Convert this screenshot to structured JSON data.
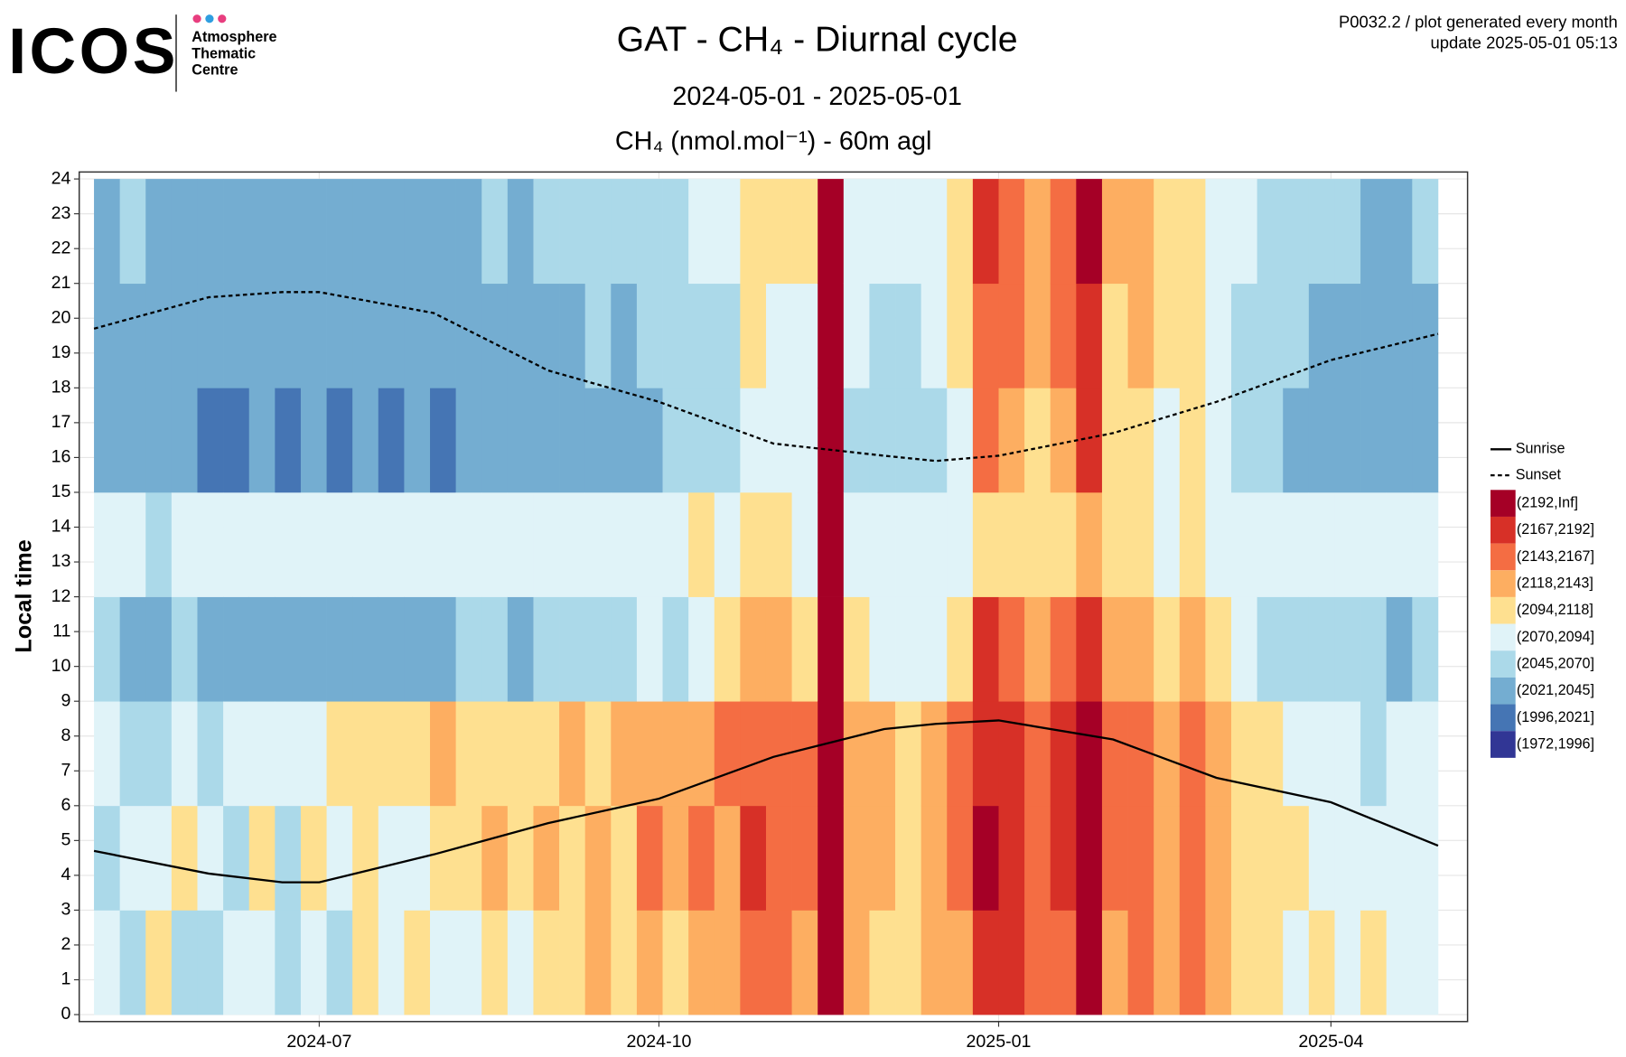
{
  "logo": {
    "name": "ICOS",
    "lines": [
      "Atmosphere",
      "Thematic",
      "Centre"
    ]
  },
  "info": [
    "P0032.2 / plot generated every month",
    "update  2025-05-01 05:13"
  ],
  "chart_data": {
    "type": "heatmap",
    "title": "GAT - CH₄ - Diurnal cycle",
    "subtitle": "2024-05-01 - 2025-05-01",
    "axis_title": "CH₄ (nmol.mol⁻¹) - 60m agl",
    "y_label": "Local time",
    "xlim": [
      "2024-04-27",
      "2025-05-08"
    ],
    "xticks": [
      {
        "value": "2024-07-01",
        "label": "2024-07"
      },
      {
        "value": "2024-10-01",
        "label": "2024-10"
      },
      {
        "value": "2025-01-01",
        "label": "2025-01"
      },
      {
        "value": "2025-04-01",
        "label": "2025-04"
      }
    ],
    "ylim": [
      -0.2,
      24.2
    ],
    "yticks": [
      0,
      1,
      2,
      3,
      4,
      5,
      6,
      7,
      8,
      9,
      10,
      11,
      12,
      13,
      14,
      15,
      16,
      17,
      18,
      19,
      20,
      21,
      22,
      23,
      24
    ],
    "grid": true,
    "x": [
      "2024-05-01",
      "2024-05-08",
      "2024-05-15",
      "2024-05-22",
      "2024-05-29",
      "2024-06-05",
      "2024-06-12",
      "2024-06-19",
      "2024-06-26",
      "2024-07-03",
      "2024-07-10",
      "2024-07-17",
      "2024-07-24",
      "2024-07-31",
      "2024-08-07",
      "2024-08-14",
      "2024-08-21",
      "2024-08-28",
      "2024-09-04",
      "2024-09-11",
      "2024-09-18",
      "2024-09-25",
      "2024-10-02",
      "2024-10-09",
      "2024-10-16",
      "2024-10-23",
      "2024-10-30",
      "2024-11-06",
      "2024-11-13",
      "2024-11-20",
      "2024-11-27",
      "2024-12-04",
      "2024-12-11",
      "2024-12-18",
      "2024-12-25",
      "2025-01-01",
      "2025-01-08",
      "2025-01-15",
      "2025-01-22",
      "2025-01-29",
      "2025-02-05",
      "2025-02-12",
      "2025-02-19",
      "2025-02-26",
      "2025-03-05",
      "2025-03-12",
      "2025-03-19",
      "2025-03-26",
      "2025-04-02",
      "2025-04-09",
      "2025-04-16",
      "2025-04-23"
    ],
    "ybins": [
      0,
      3,
      6,
      9,
      12,
      15,
      18,
      21,
      24
    ],
    "z": [
      [
        2080,
        2065,
        2090,
        2050,
        2075,
        2035,
        2045,
        2040
      ],
      [
        2060,
        2075,
        2070,
        2045,
        2080,
        2030,
        2040,
        2050
      ],
      [
        2100,
        2085,
        2065,
        2040,
        2070,
        2040,
        2035,
        2045
      ],
      [
        2070,
        2110,
        2080,
        2055,
        2085,
        2025,
        2030,
        2040
      ],
      [
        2065,
        2080,
        2060,
        2035,
        2075,
        2020,
        2030,
        2035
      ],
      [
        2090,
        2070,
        2075,
        2030,
        2080,
        2015,
        2025,
        2030
      ],
      [
        2075,
        2095,
        2080,
        2040,
        2082,
        2030,
        2035,
        2045
      ],
      [
        2060,
        2070,
        2085,
        2035,
        2078,
        2020,
        2028,
        2040
      ],
      [
        2085,
        2100,
        2090,
        2045,
        2080,
        2025,
        2030,
        2035
      ],
      [
        2070,
        2080,
        2095,
        2040,
        2085,
        2018,
        2025,
        2038
      ],
      [
        2095,
        2105,
        2100,
        2030,
        2075,
        2025,
        2035,
        2040
      ],
      [
        2080,
        2090,
        2110,
        2035,
        2080,
        2015,
        2022,
        2030
      ],
      [
        2100,
        2085,
        2095,
        2045,
        2082,
        2028,
        2035,
        2042
      ],
      [
        2075,
        2110,
        2120,
        2040,
        2078,
        2020,
        2030,
        2038
      ],
      [
        2090,
        2100,
        2105,
        2050,
        2085,
        2030,
        2038,
        2045
      ],
      [
        2105,
        2120,
        2100,
        2055,
        2080,
        2035,
        2040,
        2048
      ],
      [
        2085,
        2095,
        2115,
        2045,
        2082,
        2025,
        2035,
        2042
      ],
      [
        2110,
        2125,
        2110,
        2060,
        2085,
        2035,
        2045,
        2050
      ],
      [
        2095,
        2105,
        2120,
        2055,
        2080,
        2030,
        2040,
        2050
      ],
      [
        2120,
        2130,
        2115,
        2065,
        2085,
        2040,
        2048,
        2055
      ],
      [
        2100,
        2110,
        2125,
        2060,
        2088,
        2035,
        2045,
        2052
      ],
      [
        2130,
        2145,
        2130,
        2075,
        2090,
        2045,
        2055,
        2060
      ],
      [
        2115,
        2125,
        2135,
        2070,
        2085,
        2050,
        2058,
        2065
      ],
      [
        2140,
        2150,
        2140,
        2090,
        2095,
        2060,
        2070,
        2075
      ],
      [
        2125,
        2135,
        2150,
        2100,
        2090,
        2055,
        2065,
        2072
      ],
      [
        2160,
        2170,
        2165,
        2130,
        2100,
        2090,
        2105,
        2110
      ],
      [
        2145,
        2155,
        2160,
        2120,
        2095,
        2075,
        2085,
        2095
      ],
      [
        2135,
        2150,
        2145,
        2110,
        2092,
        2080,
        2090,
        2100
      ],
      [
        2210,
        2215,
        2210,
        2205,
        2200,
        2205,
        2210,
        2215
      ],
      [
        2130,
        2140,
        2135,
        2100,
        2088,
        2070,
        2080,
        2090
      ],
      [
        2115,
        2125,
        2120,
        2085,
        2085,
        2060,
        2070,
        2080
      ],
      [
        2105,
        2115,
        2110,
        2075,
        2082,
        2055,
        2065,
        2075
      ],
      [
        2125,
        2130,
        2120,
        2090,
        2088,
        2065,
        2075,
        2085
      ],
      [
        2140,
        2150,
        2145,
        2110,
        2092,
        2090,
        2100,
        2110
      ],
      [
        2185,
        2195,
        2190,
        2170,
        2110,
        2150,
        2165,
        2175
      ],
      [
        2175,
        2185,
        2180,
        2160,
        2105,
        2140,
        2155,
        2165
      ],
      [
        2150,
        2160,
        2155,
        2130,
        2098,
        2110,
        2125,
        2135
      ],
      [
        2165,
        2175,
        2170,
        2150,
        2100,
        2130,
        2145,
        2150
      ],
      [
        2195,
        2205,
        2200,
        2190,
        2120,
        2180,
        2190,
        2195
      ],
      [
        2140,
        2150,
        2145,
        2120,
        2095,
        2095,
        2110,
        2120
      ],
      [
        2155,
        2165,
        2160,
        2130,
        2098,
        2110,
        2125,
        2130
      ],
      [
        2130,
        2140,
        2135,
        2105,
        2090,
        2085,
        2095,
        2105
      ],
      [
        2145,
        2155,
        2150,
        2120,
        2095,
        2100,
        2110,
        2115
      ],
      [
        2120,
        2130,
        2125,
        2095,
        2088,
        2075,
        2085,
        2090
      ],
      [
        2110,
        2115,
        2110,
        2080,
        2085,
        2065,
        2070,
        2080
      ],
      [
        2095,
        2105,
        2100,
        2070,
        2082,
        2055,
        2060,
        2070
      ],
      [
        2085,
        2095,
        2090,
        2060,
        2080,
        2045,
        2050,
        2060
      ],
      [
        2100,
        2090,
        2085,
        2055,
        2078,
        2040,
        2045,
        2055
      ],
      [
        2080,
        2085,
        2080,
        2050,
        2080,
        2038,
        2040,
        2050
      ],
      [
        2095,
        2075,
        2070,
        2048,
        2082,
        2035,
        2040,
        2045
      ],
      [
        2075,
        2085,
        2075,
        2045,
        2078,
        2030,
        2038,
        2042
      ],
      [
        2090,
        2080,
        2072,
        2050,
        2080,
        2040,
        2045,
        2050
      ]
    ],
    "colorscale": {
      "breaks": [
        1972,
        1996,
        2021,
        2045,
        2070,
        2094,
        2118,
        2143,
        2167,
        2192
      ],
      "labels": [
        "(2192,Inf]",
        "(2167,2192]",
        "(2143,2167]",
        "(2118,2143]",
        "(2094,2118]",
        "(2070,2094]",
        "(2045,2070]",
        "(2021,2045]",
        "(1996,2021]",
        "(1972,1996]"
      ],
      "colors": [
        "#a50026",
        "#d73027",
        "#f46d43",
        "#fdae61",
        "#fee090",
        "#e0f3f8",
        "#abd9e9",
        "#74add1",
        "#4575b4",
        "#313695"
      ]
    },
    "series": [
      {
        "name": "Sunrise",
        "color": "#000000",
        "dash": false,
        "x": [
          "2024-05-01",
          "2024-06-01",
          "2024-06-21",
          "2024-07-01",
          "2024-08-01",
          "2024-09-01",
          "2024-10-01",
          "2024-11-01",
          "2024-12-01",
          "2024-12-15",
          "2025-01-01",
          "2025-02-01",
          "2025-03-01",
          "2025-04-01",
          "2025-04-30"
        ],
        "values": [
          4.7,
          4.05,
          3.8,
          3.8,
          4.6,
          5.5,
          6.2,
          7.4,
          8.2,
          8.35,
          8.45,
          7.9,
          6.8,
          6.1,
          4.85
        ]
      },
      {
        "name": "Sunset",
        "color": "#000000",
        "dash": true,
        "x": [
          "2024-05-01",
          "2024-06-01",
          "2024-06-21",
          "2024-07-01",
          "2024-08-01",
          "2024-09-01",
          "2024-10-01",
          "2024-11-01",
          "2024-12-01",
          "2024-12-15",
          "2025-01-01",
          "2025-02-01",
          "2025-03-01",
          "2025-04-01",
          "2025-04-30"
        ],
        "values": [
          19.7,
          20.6,
          20.75,
          20.75,
          20.15,
          18.5,
          17.6,
          16.4,
          16.05,
          15.9,
          16.05,
          16.7,
          17.6,
          18.8,
          19.55
        ]
      }
    ]
  }
}
